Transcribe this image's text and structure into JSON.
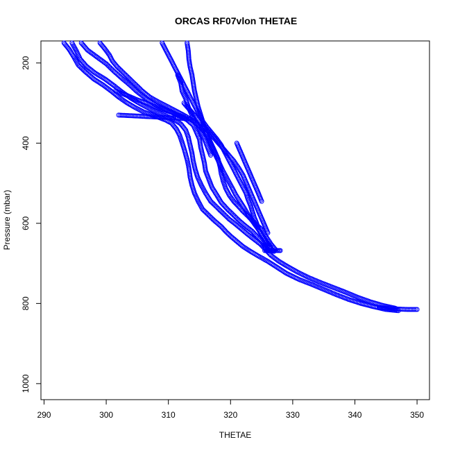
{
  "chart_data": {
    "type": "scatter",
    "title": "ORCAS RF07vlon THETAE",
    "xlabel": "THETAE",
    "ylabel": "Pressure (mbar)",
    "xlim": [
      289.5,
      352.0
    ],
    "ylim": [
      1040,
      145
    ],
    "y_reversed": true,
    "x_ticks": [
      290,
      300,
      310,
      320,
      330,
      340,
      350
    ],
    "y_ticks": [
      200,
      400,
      600,
      800,
      1000
    ],
    "marker": "open-circle",
    "color": "#0000ff",
    "grid": false,
    "legend": "none",
    "traces": [
      [
        [
          293.2,
          150
        ],
        [
          294.0,
          165
        ],
        [
          294.8,
          185
        ],
        [
          295.5,
          205
        ],
        [
          296.5,
          220
        ],
        [
          298.0,
          240
        ],
        [
          299.5,
          255
        ],
        [
          300.8,
          270
        ],
        [
          302.0,
          285
        ],
        [
          303.2,
          298
        ],
        [
          304.5,
          310
        ],
        [
          306.0,
          322
        ],
        [
          307.8,
          332
        ],
        [
          309.5,
          342
        ],
        [
          310.5,
          350
        ],
        [
          311.3,
          365
        ],
        [
          311.8,
          380
        ],
        [
          312.2,
          398
        ],
        [
          312.6,
          418
        ],
        [
          313.0,
          440
        ],
        [
          313.3,
          462
        ],
        [
          313.5,
          485
        ],
        [
          313.8,
          505
        ],
        [
          314.2,
          525
        ],
        [
          314.8,
          545
        ],
        [
          315.5,
          565
        ],
        [
          316.5,
          580
        ],
        [
          317.5,
          595
        ],
        [
          318.5,
          608
        ],
        [
          319.2,
          620
        ],
        [
          320.0,
          632
        ],
        [
          321.0,
          645
        ],
        [
          322.0,
          658
        ],
        [
          323.2,
          670
        ],
        [
          324.5,
          682
        ],
        [
          326.0,
          695
        ],
        [
          327.5,
          710
        ],
        [
          329.0,
          725
        ],
        [
          331.0,
          740
        ],
        [
          333.0,
          752
        ],
        [
          335.0,
          765
        ],
        [
          337.0,
          778
        ],
        [
          339.0,
          790
        ],
        [
          341.0,
          800
        ],
        [
          343.0,
          808
        ],
        [
          345.0,
          815
        ],
        [
          347.0,
          818
        ]
      ],
      [
        [
          294.5,
          150
        ],
        [
          295.2,
          170
        ],
        [
          295.8,
          190
        ],
        [
          296.8,
          208
        ],
        [
          298.2,
          225
        ],
        [
          299.8,
          240
        ],
        [
          301.2,
          256
        ],
        [
          302.5,
          272
        ],
        [
          304.0,
          288
        ],
        [
          305.5,
          302
        ],
        [
          307.2,
          316
        ],
        [
          309.0,
          328
        ],
        [
          310.8,
          340
        ],
        [
          312.0,
          352
        ],
        [
          312.8,
          368
        ],
        [
          313.2,
          385
        ],
        [
          313.5,
          405
        ],
        [
          313.8,
          425
        ],
        [
          314.0,
          445
        ],
        [
          314.3,
          465
        ],
        [
          314.7,
          485
        ],
        [
          315.3,
          505
        ],
        [
          316.0,
          525
        ],
        [
          316.8,
          545
        ],
        [
          317.8,
          560
        ],
        [
          318.8,
          575
        ],
        [
          319.8,
          590
        ],
        [
          320.8,
          602
        ],
        [
          321.8,
          615
        ],
        [
          322.8,
          628
        ],
        [
          323.8,
          640
        ],
        [
          324.8,
          652
        ],
        [
          325.6,
          665
        ],
        [
          326.5,
          680
        ],
        [
          327.8,
          695
        ],
        [
          329.2,
          708
        ],
        [
          330.8,
          722
        ],
        [
          332.5,
          735
        ],
        [
          334.5,
          748
        ],
        [
          336.5,
          760
        ],
        [
          338.5,
          772
        ],
        [
          340.5,
          785
        ],
        [
          342.5,
          796
        ],
        [
          344.5,
          805
        ],
        [
          346.5,
          812
        ]
      ],
      [
        [
          296.0,
          150
        ],
        [
          297.0,
          168
        ],
        [
          298.5,
          185
        ],
        [
          300.0,
          202
        ],
        [
          301.2,
          220
        ],
        [
          302.5,
          238
        ],
        [
          303.8,
          255
        ],
        [
          305.0,
          272
        ],
        [
          306.5,
          290
        ],
        [
          308.0,
          305
        ],
        [
          309.8,
          318
        ],
        [
          311.5,
          330
        ],
        [
          313.0,
          342
        ],
        [
          314.0,
          355
        ],
        [
          314.5,
          372
        ],
        [
          315.0,
          390
        ],
        [
          315.2,
          410
        ],
        [
          315.5,
          430
        ],
        [
          315.8,
          450
        ],
        [
          316.0,
          470
        ],
        [
          316.5,
          490
        ],
        [
          317.0,
          510
        ],
        [
          317.8,
          530
        ],
        [
          318.5,
          548
        ],
        [
          319.5,
          565
        ],
        [
          320.5,
          580
        ],
        [
          321.5,
          595
        ],
        [
          322.5,
          608
        ],
        [
          323.5,
          620
        ],
        [
          324.2,
          632
        ],
        [
          325.0,
          645
        ],
        [
          325.5,
          658
        ],
        [
          326.0,
          668
        ],
        [
          327.0,
          670
        ]
      ],
      [
        [
          299.0,
          150
        ],
        [
          299.8,
          165
        ],
        [
          300.5,
          180
        ],
        [
          301.0,
          195
        ],
        [
          301.8,
          210
        ],
        [
          302.8,
          225
        ],
        [
          303.8,
          240
        ],
        [
          304.8,
          255
        ],
        [
          305.8,
          270
        ],
        [
          307.0,
          285
        ],
        [
          308.5,
          298
        ],
        [
          310.0,
          310
        ],
        [
          311.5,
          322
        ],
        [
          312.8,
          333
        ],
        [
          314.0,
          345
        ],
        [
          315.0,
          358
        ],
        [
          315.8,
          372
        ],
        [
          316.5,
          388
        ],
        [
          317.0,
          405
        ],
        [
          317.5,
          422
        ],
        [
          318.0,
          440
        ],
        [
          318.3,
          458
        ],
        [
          318.5,
          476
        ],
        [
          318.8,
          494
        ],
        [
          319.2,
          512
        ],
        [
          319.8,
          530
        ],
        [
          320.5,
          545
        ],
        [
          321.3,
          558
        ],
        [
          322.0,
          570
        ],
        [
          322.8,
          582
        ],
        [
          323.5,
          593
        ],
        [
          324.2,
          604
        ],
        [
          325.0,
          615
        ],
        [
          325.5,
          628
        ],
        [
          326.0,
          640
        ],
        [
          326.5,
          652
        ],
        [
          327.2,
          665
        ]
      ],
      [
        [
          309.0,
          150
        ],
        [
          309.5,
          165
        ],
        [
          310.0,
          180
        ],
        [
          310.5,
          195
        ],
        [
          311.0,
          210
        ],
        [
          311.5,
          225
        ],
        [
          312.0,
          240
        ],
        [
          312.5,
          255
        ],
        [
          313.0,
          270
        ],
        [
          313.5,
          285
        ],
        [
          314.0,
          300
        ],
        [
          314.5,
          315
        ],
        [
          315.0,
          330
        ],
        [
          315.5,
          345
        ],
        [
          316.2,
          360
        ],
        [
          317.0,
          375
        ],
        [
          317.8,
          390
        ],
        [
          318.5,
          405
        ],
        [
          319.0,
          420
        ],
        [
          319.5,
          435
        ],
        [
          320.0,
          450
        ],
        [
          320.5,
          465
        ],
        [
          321.0,
          480
        ],
        [
          321.5,
          495
        ],
        [
          322.0,
          510
        ],
        [
          322.5,
          525
        ],
        [
          322.8,
          540
        ],
        [
          323.2,
          555
        ],
        [
          323.5,
          570
        ],
        [
          323.8,
          585
        ],
        [
          324.2,
          600
        ],
        [
          324.5,
          615
        ],
        [
          325.0,
          630
        ],
        [
          325.5,
          645
        ],
        [
          326.0,
          660
        ]
      ],
      [
        [
          313.0,
          150
        ],
        [
          313.2,
          170
        ],
        [
          313.3,
          190
        ],
        [
          313.5,
          210
        ],
        [
          313.8,
          230
        ],
        [
          314.0,
          250
        ],
        [
          314.2,
          270
        ],
        [
          314.5,
          290
        ],
        [
          314.8,
          310
        ],
        [
          315.2,
          330
        ],
        [
          315.6,
          350
        ],
        [
          316.0,
          370
        ],
        [
          316.5,
          390
        ],
        [
          317.0,
          410
        ],
        [
          317.6,
          430
        ],
        [
          318.2,
          450
        ],
        [
          318.8,
          470
        ],
        [
          319.5,
          490
        ],
        [
          320.2,
          510
        ],
        [
          320.8,
          528
        ],
        [
          321.5,
          545
        ],
        [
          322.2,
          562
        ],
        [
          322.8,
          578
        ],
        [
          323.4,
          592
        ],
        [
          324.0,
          605
        ],
        [
          324.6,
          618
        ],
        [
          325.2,
          632
        ],
        [
          325.8,
          646
        ],
        [
          326.5,
          660
        ]
      ],
      [
        [
          312.5,
          300
        ],
        [
          313.5,
          318
        ],
        [
          314.5,
          336
        ],
        [
          315.5,
          354
        ],
        [
          316.5,
          372
        ],
        [
          317.5,
          390
        ],
        [
          318.5,
          408
        ],
        [
          319.5,
          426
        ],
        [
          320.5,
          444
        ],
        [
          321.3,
          462
        ],
        [
          322.0,
          480
        ],
        [
          322.5,
          498
        ],
        [
          323.0,
          516
        ],
        [
          323.5,
          534
        ],
        [
          324.0,
          552
        ],
        [
          324.5,
          570
        ],
        [
          325.0,
          588
        ],
        [
          325.5,
          606
        ],
        [
          326.0,
          624
        ]
      ],
      [
        [
          321.0,
          400
        ],
        [
          321.5,
          418
        ],
        [
          322.0,
          436
        ],
        [
          322.5,
          454
        ],
        [
          323.0,
          472
        ],
        [
          323.5,
          490
        ],
        [
          324.0,
          508
        ],
        [
          324.5,
          526
        ],
        [
          325.0,
          545
        ]
      ],
      [
        [
          344.0,
          810
        ],
        [
          345.5,
          812
        ],
        [
          347.0,
          814
        ],
        [
          348.5,
          815
        ],
        [
          350.0,
          815
        ]
      ],
      [
        [
          325.5,
          668
        ],
        [
          326.5,
          668
        ],
        [
          327.5,
          668
        ],
        [
          328.0,
          668
        ]
      ],
      [
        [
          311.5,
          230
        ],
        [
          312.0,
          250
        ],
        [
          312.2,
          270
        ],
        [
          312.8,
          290
        ],
        [
          313.2,
          310
        ],
        [
          313.8,
          330
        ],
        [
          314.5,
          350
        ],
        [
          315.2,
          370
        ],
        [
          315.8,
          390
        ],
        [
          316.3,
          410
        ],
        [
          316.8,
          430
        ]
      ],
      [
        [
          301.5,
          270
        ],
        [
          303.5,
          282
        ],
        [
          305.0,
          292
        ],
        [
          306.5,
          300
        ],
        [
          308.0,
          310
        ],
        [
          309.5,
          318
        ],
        [
          311.0,
          326
        ],
        [
          312.5,
          335
        ]
      ],
      [
        [
          302.0,
          330
        ],
        [
          304.5,
          332
        ],
        [
          307.0,
          334
        ],
        [
          309.5,
          336
        ],
        [
          312.0,
          338
        ],
        [
          313.5,
          340
        ]
      ]
    ]
  }
}
